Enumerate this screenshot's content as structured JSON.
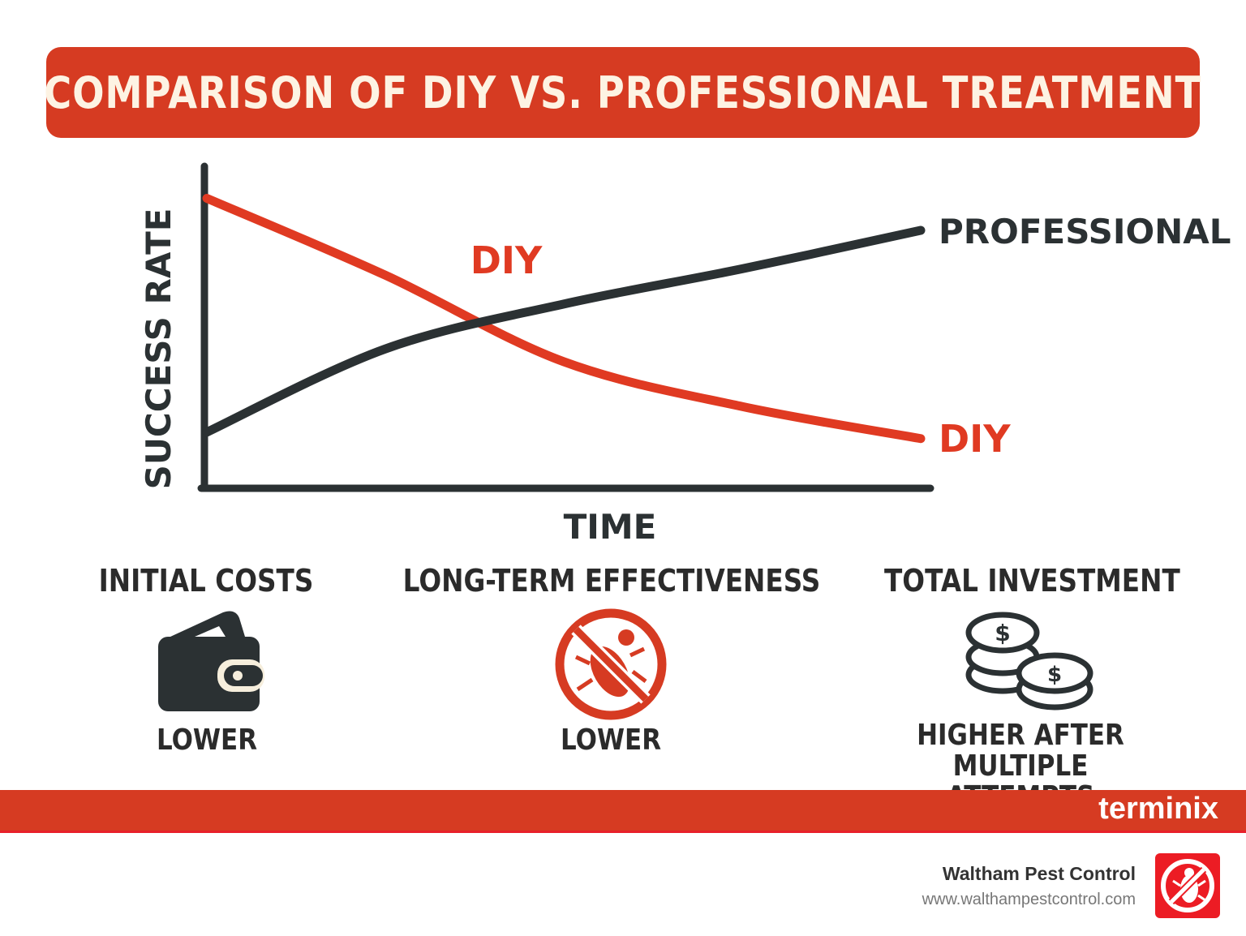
{
  "title": "COMPARISON OF DIY VS. PROFESSIONAL TREATMENT",
  "chart_data": {
    "type": "line",
    "xlabel": "TIME",
    "ylabel": "SUCCESS RATE",
    "x": [
      0,
      25,
      50,
      75,
      100
    ],
    "xlim": [
      0,
      100
    ],
    "ylim": [
      0,
      100
    ],
    "grid": false,
    "series": [
      {
        "name": "DIY",
        "color": "#e03a22",
        "values": [
          90,
          66,
          39,
          25,
          15
        ]
      },
      {
        "name": "PROFESSIONAL",
        "color": "#2b3133",
        "values": [
          17,
          43,
          57,
          68,
          80
        ]
      }
    ],
    "annotations": [
      "DIY"
    ]
  },
  "categories": [
    {
      "label": "INITIAL COSTS",
      "icon": "wallet-icon",
      "value": "LOWER"
    },
    {
      "label": "LONG-TERM EFFECTIVENESS",
      "icon": "no-bug-icon",
      "value": "LOWER"
    },
    {
      "label": "TOTAL INVESTMENT",
      "icon": "coins-icon",
      "value_line1": "HIGHER AFTER",
      "value_line2": "MULTIPLE ATTEMPTS"
    }
  ],
  "footer": {
    "brand": "terminix",
    "company": "Waltham Pest Control",
    "url": "www.walthampestcontrol.com"
  },
  "colors": {
    "accent": "#d63b22",
    "dark": "#2b3133",
    "logo_red": "#ec1c24"
  }
}
